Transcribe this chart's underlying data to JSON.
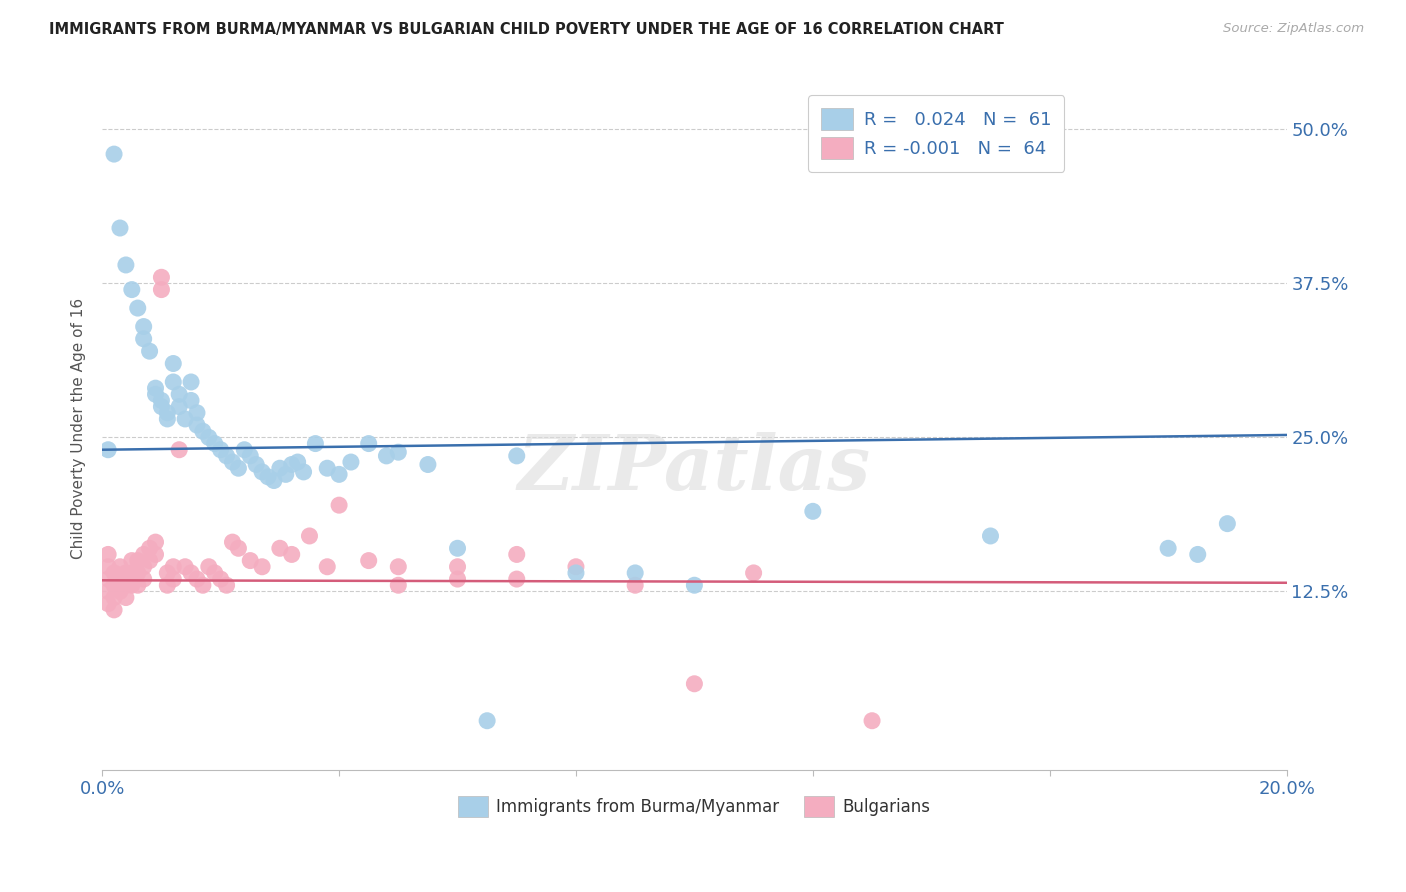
{
  "title": "IMMIGRANTS FROM BURMA/MYANMAR VS BULGARIAN CHILD POVERTY UNDER THE AGE OF 16 CORRELATION CHART",
  "source": "Source: ZipAtlas.com",
  "ylabel": "Child Poverty Under the Age of 16",
  "ytick_values": [
    0.125,
    0.25,
    0.375,
    0.5
  ],
  "xmin": 0.0,
  "xmax": 0.2,
  "ymin": -0.02,
  "ymax": 0.535,
  "blue_color": "#a8cfe8",
  "pink_color": "#f4adc0",
  "blue_line_color": "#3a6fad",
  "pink_line_color": "#d45c7a",
  "legend_R_blue": "0.024",
  "legend_N_blue": "61",
  "legend_R_pink": "-0.001",
  "legend_N_pink": "64",
  "legend_label_blue": "Immigrants from Burma/Myanmar",
  "legend_label_pink": "Bulgarians",
  "watermark": "ZIPatlas",
  "blue_trend_x": [
    0.0,
    0.2
  ],
  "blue_trend_y": [
    0.24,
    0.252
  ],
  "pink_trend_x": [
    0.0,
    0.2
  ],
  "pink_trend_y": [
    0.134,
    0.132
  ],
  "blue_x": [
    0.002,
    0.003,
    0.004,
    0.005,
    0.006,
    0.007,
    0.007,
    0.008,
    0.009,
    0.009,
    0.01,
    0.01,
    0.011,
    0.011,
    0.012,
    0.012,
    0.013,
    0.013,
    0.014,
    0.015,
    0.015,
    0.016,
    0.016,
    0.017,
    0.018,
    0.019,
    0.02,
    0.021,
    0.022,
    0.023,
    0.024,
    0.025,
    0.026,
    0.027,
    0.028,
    0.029,
    0.03,
    0.031,
    0.032,
    0.033,
    0.034,
    0.036,
    0.038,
    0.04,
    0.042,
    0.045,
    0.048,
    0.05,
    0.055,
    0.06,
    0.065,
    0.07,
    0.08,
    0.09,
    0.1,
    0.12,
    0.15,
    0.18,
    0.185,
    0.19,
    0.001
  ],
  "blue_y": [
    0.48,
    0.42,
    0.39,
    0.37,
    0.355,
    0.34,
    0.33,
    0.32,
    0.29,
    0.285,
    0.28,
    0.275,
    0.27,
    0.265,
    0.31,
    0.295,
    0.285,
    0.275,
    0.265,
    0.295,
    0.28,
    0.27,
    0.26,
    0.255,
    0.25,
    0.245,
    0.24,
    0.235,
    0.23,
    0.225,
    0.24,
    0.235,
    0.228,
    0.222,
    0.218,
    0.215,
    0.225,
    0.22,
    0.228,
    0.23,
    0.222,
    0.245,
    0.225,
    0.22,
    0.23,
    0.245,
    0.235,
    0.238,
    0.228,
    0.16,
    0.02,
    0.235,
    0.14,
    0.14,
    0.13,
    0.19,
    0.17,
    0.16,
    0.155,
    0.18,
    0.24
  ],
  "pink_x": [
    0.001,
    0.001,
    0.001,
    0.001,
    0.001,
    0.002,
    0.002,
    0.002,
    0.002,
    0.003,
    0.003,
    0.003,
    0.004,
    0.004,
    0.004,
    0.005,
    0.005,
    0.005,
    0.006,
    0.006,
    0.006,
    0.007,
    0.007,
    0.007,
    0.008,
    0.008,
    0.009,
    0.009,
    0.01,
    0.01,
    0.011,
    0.011,
    0.012,
    0.012,
    0.013,
    0.014,
    0.015,
    0.016,
    0.017,
    0.018,
    0.019,
    0.02,
    0.021,
    0.022,
    0.023,
    0.025,
    0.027,
    0.03,
    0.032,
    0.035,
    0.038,
    0.04,
    0.045,
    0.05,
    0.06,
    0.07,
    0.08,
    0.09,
    0.1,
    0.11,
    0.13,
    0.06,
    0.05,
    0.07
  ],
  "pink_y": [
    0.155,
    0.145,
    0.135,
    0.125,
    0.115,
    0.14,
    0.13,
    0.12,
    0.11,
    0.145,
    0.135,
    0.125,
    0.14,
    0.13,
    0.12,
    0.15,
    0.14,
    0.13,
    0.15,
    0.14,
    0.13,
    0.155,
    0.145,
    0.135,
    0.16,
    0.15,
    0.165,
    0.155,
    0.38,
    0.37,
    0.14,
    0.13,
    0.145,
    0.135,
    0.24,
    0.145,
    0.14,
    0.135,
    0.13,
    0.145,
    0.14,
    0.135,
    0.13,
    0.165,
    0.16,
    0.15,
    0.145,
    0.16,
    0.155,
    0.17,
    0.145,
    0.195,
    0.15,
    0.145,
    0.145,
    0.155,
    0.145,
    0.13,
    0.05,
    0.14,
    0.02,
    0.135,
    0.13,
    0.135
  ]
}
